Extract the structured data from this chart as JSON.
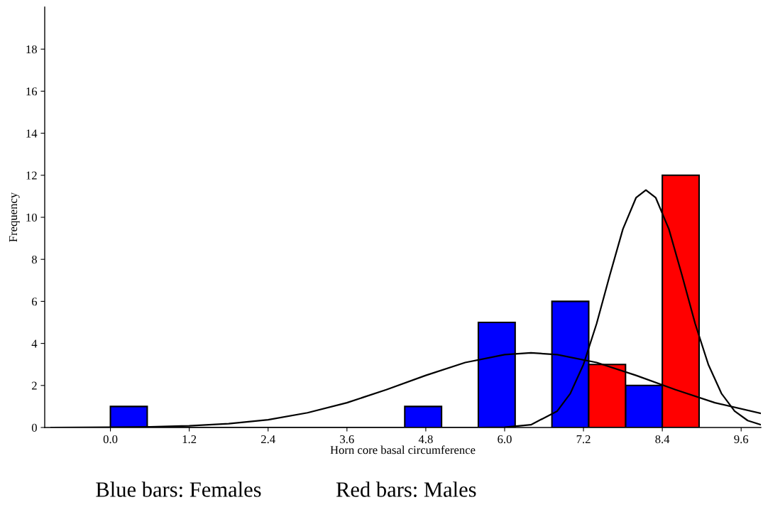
{
  "chart_data": {
    "type": "histogram",
    "xlabel": "Horn core basal circumference",
    "ylabel": "Frequency",
    "bins": [
      0,
      0.56,
      1.12,
      1.68,
      2.24,
      2.8,
      3.36,
      3.92,
      4.48,
      5.04,
      5.6,
      6.16,
      6.72,
      7.28,
      7.84,
      8.4,
      8.96
    ],
    "series": [
      {
        "color": "#0000ff",
        "values": [
          1,
          null,
          null,
          null,
          null,
          null,
          null,
          null,
          1,
          null,
          5,
          null,
          6,
          null,
          2,
          null
        ]
      },
      {
        "color": "#ff0000",
        "values": [
          null,
          null,
          null,
          null,
          null,
          null,
          null,
          null,
          null,
          null,
          null,
          null,
          null,
          3,
          null,
          12
        ]
      },
      {
        "type": "line",
        "color": "#000000",
        "x": [
          -0.9,
          0,
          0.6,
          1.2,
          1.8,
          2.4,
          3.0,
          3.6,
          4.2,
          4.8,
          5.4,
          6.0,
          6.4,
          6.8,
          7.4,
          8.0,
          8.6,
          9.2,
          9.9
        ],
        "values": [
          0,
          0.01,
          0.03,
          0.08,
          0.18,
          0.37,
          0.7,
          1.18,
          1.8,
          2.48,
          3.09,
          3.47,
          3.55,
          3.47,
          3.09,
          2.48,
          1.8,
          1.18,
          0.67
        ]
      },
      {
        "type": "line",
        "color": "#000000",
        "x": [
          -0.9,
          5.6,
          6.0,
          6.4,
          6.8,
          7.0,
          7.2,
          7.4,
          7.6,
          7.8,
          8.0,
          8.15,
          8.3,
          8.5,
          8.7,
          8.9,
          9.1,
          9.3,
          9.5,
          9.7,
          9.9
        ],
        "values": [
          0,
          0,
          0.01,
          0.13,
          0.78,
          1.62,
          3.0,
          4.94,
          7.24,
          9.44,
          10.93,
          11.3,
          10.93,
          9.44,
          7.24,
          4.94,
          3.0,
          1.62,
          0.78,
          0.33,
          0.13
        ]
      }
    ],
    "xlim": [
      -1.0,
      9.9
    ],
    "ylim": [
      0,
      20
    ],
    "xticks": [
      {
        "value": 0,
        "label": "0.0"
      },
      {
        "value": 1.2,
        "label": "1.2"
      },
      {
        "value": 2.4,
        "label": "2.4"
      },
      {
        "value": 3.6,
        "label": "3.6"
      },
      {
        "value": 4.8,
        "label": "4.8"
      },
      {
        "value": 6.0,
        "label": "6.0"
      },
      {
        "value": 7.2,
        "label": "7.2"
      },
      {
        "value": 8.4,
        "label": "8.4"
      },
      {
        "value": 9.6,
        "label": "9.6"
      }
    ],
    "yticks": [
      0,
      2,
      4,
      6,
      8,
      10,
      12,
      14,
      16,
      18
    ],
    "annotations": [
      "Blue bars: Females",
      "Red bars: Males"
    ],
    "grid": false
  }
}
